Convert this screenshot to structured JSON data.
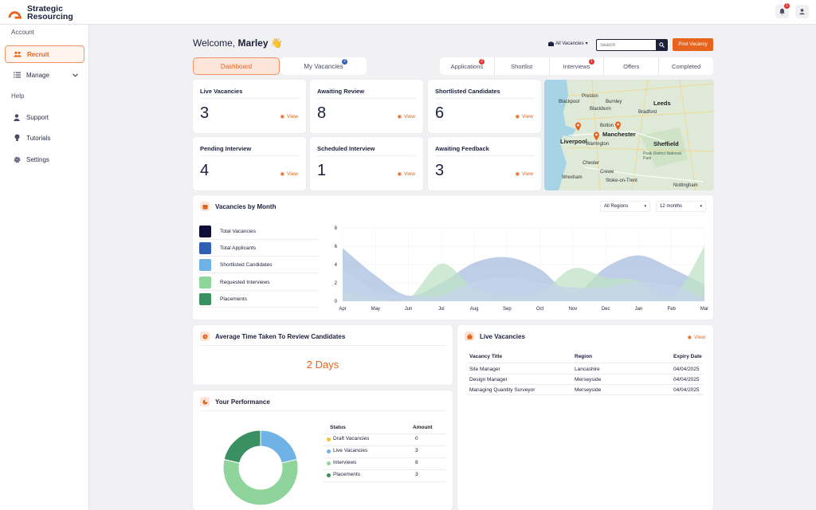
{
  "brand": {
    "line1": "Strategic",
    "line2": "Resourcing",
    "accent": "#e8641c",
    "navy": "#1c1f3a"
  },
  "topbar": {
    "notification_count": "1",
    "bell_icon": "bell-icon",
    "user_icon": "user-icon"
  },
  "sidebar": {
    "account_heading": "Account",
    "help_heading": "Help",
    "items": [
      {
        "label": "Recruit",
        "icon": "users-icon"
      },
      {
        "label": "Manage",
        "icon": "list-icon"
      },
      {
        "label": "Support",
        "icon": "person-icon"
      },
      {
        "label": "Tutorials",
        "icon": "lightbulb-icon"
      },
      {
        "label": "Settings",
        "icon": "gear-icon"
      }
    ]
  },
  "header": {
    "welcome": "Welcome,",
    "user": "Marley",
    "wave": "👋",
    "vacancy_filter": "All Vacancies",
    "search_placeholder": "Search",
    "post_button": "Post Vacancy"
  },
  "tabs": [
    {
      "label": "Dashboard"
    },
    {
      "label": "My Vacancies",
      "badge": "2"
    }
  ],
  "pipeline": [
    {
      "label": "Applications",
      "badge": "2"
    },
    {
      "label": "Shortlist",
      "badge": ""
    },
    {
      "label": "Interviews",
      "badge": "1"
    },
    {
      "label": "Offers",
      "badge": ""
    },
    {
      "label": "Completed",
      "badge": ""
    }
  ],
  "stats": [
    {
      "title": "Live Vacancies",
      "value": "3",
      "view": "View"
    },
    {
      "title": "Awaiting Review",
      "value": "8",
      "view": "View"
    },
    {
      "title": "Shortlisted Candidates",
      "value": "6",
      "view": "View"
    },
    {
      "title": "Pending Interview",
      "value": "4",
      "view": "View"
    },
    {
      "title": "Scheduled Interview",
      "value": "1",
      "view": "View"
    },
    {
      "title": "Awaiting Feedback",
      "value": "3",
      "view": "View"
    }
  ],
  "map": {
    "cities": [
      "Blackpool",
      "Preston",
      "Leeds",
      "Burnley",
      "Blackburn",
      "Bradford",
      "Bolton",
      "Manchester",
      "Liverpool",
      "Warrington",
      "Sheffield",
      "Chester",
      "Crewe",
      "Wrexham",
      "Stoke-on-Trent",
      "Nottingham",
      "Peak District National Park"
    ]
  },
  "vacancies_chart": {
    "title": "Vacancies by Month",
    "region_filter": "All Regions",
    "period_filter": "12 months",
    "legend": [
      {
        "label": "Total Vacancies",
        "color": "#0d0d35"
      },
      {
        "label": "Total Applicants",
        "color": "#2e5fb3"
      },
      {
        "label": "Shortlisted Candidates",
        "color": "#6fb3e6"
      },
      {
        "label": "Requested Interviews",
        "color": "#8fd49a"
      },
      {
        "label": "Placements",
        "color": "#3a9061"
      }
    ]
  },
  "chart_data": {
    "type": "area",
    "categories": [
      "Apr",
      "May",
      "Jun",
      "Jul",
      "Aug",
      "Sep",
      "Oct",
      "Nov",
      "Dec",
      "Jan",
      "Feb",
      "Mar"
    ],
    "y_ticks": [
      0,
      2,
      4,
      6,
      8
    ],
    "ylim": [
      0,
      8
    ],
    "grid": true,
    "series": [
      {
        "name": "Total Applicants",
        "color": "#a9bedf",
        "values": [
          5.8,
          2.8,
          0.6,
          2.0,
          4.2,
          4.8,
          3.5,
          0.8,
          3.7,
          5.0,
          3.6,
          1.8
        ]
      },
      {
        "name": "Requested Interviews",
        "color": "#bfe1c7",
        "values": [
          1.0,
          0.3,
          0.3,
          4.1,
          1.4,
          0.6,
          0.9,
          3.6,
          2.6,
          2.2,
          0.4,
          6.0
        ]
      },
      {
        "name": "Shortlisted Candidates",
        "color": "#c6d3ea",
        "values": [
          3.5,
          1.1,
          0.6,
          0.6,
          2.1,
          2.7,
          2.0,
          1.5,
          1.5,
          2.1,
          1.7,
          0.4
        ]
      }
    ]
  },
  "avg_review": {
    "title": "Average Time Taken To Review Candidates",
    "value": "2 Days"
  },
  "live_vacancies": {
    "title": "Live Vacancies",
    "view": "View",
    "columns": [
      "Vacancy Title",
      "Region",
      "Expiry Date"
    ],
    "rows": [
      [
        "Site Manager",
        "Lancashire",
        "04/04/2025"
      ],
      [
        "Design Manager",
        "Merseyside",
        "04/04/2025"
      ],
      [
        "Managing Quantity Surveyor",
        "Merseyside",
        "04/04/2025"
      ]
    ]
  },
  "performance": {
    "title": "Your Performance",
    "columns": [
      "Status",
      "Amount"
    ],
    "rows": [
      {
        "label": "Draft Vacancies",
        "amount": "0",
        "color": "#f2c230"
      },
      {
        "label": "Live Vacancies",
        "amount": "3",
        "color": "#6fb3e6"
      },
      {
        "label": "Interviews",
        "amount": "8",
        "color": "#8fd49a"
      },
      {
        "label": "Placements",
        "amount": "3",
        "color": "#3a9061"
      }
    ]
  }
}
